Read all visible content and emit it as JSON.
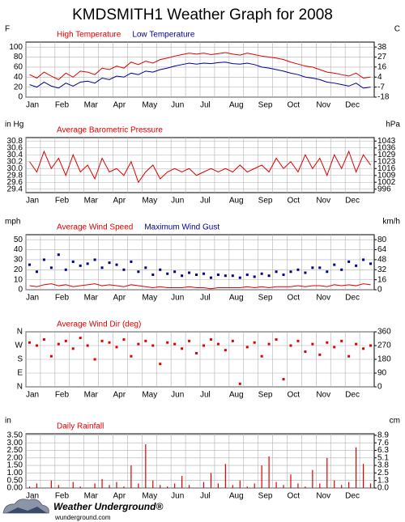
{
  "title": "KMDSMITH1 Weather Graph for 2008",
  "logo": {
    "name": "Weather Underground®",
    "url": "wunderground.com"
  },
  "chart_data": [
    {
      "type": "line",
      "ylabel": "F",
      "y2label": "C",
      "categories": [
        "Jan",
        null,
        null,
        null,
        "Feb",
        null,
        null,
        null,
        "Mar",
        null,
        null,
        null,
        "Apr",
        null,
        null,
        null,
        "May",
        null,
        null,
        null,
        "Jun",
        null,
        null,
        null,
        "Jul",
        null,
        null,
        null,
        "Aug",
        null,
        null,
        null,
        "Sep",
        null,
        null,
        null,
        "Oct",
        null,
        null,
        null,
        "Nov",
        null,
        null,
        null,
        "Dec",
        null,
        null,
        null
      ],
      "ylim": [
        0,
        110
      ],
      "yticks": [
        0,
        20,
        40,
        60,
        80,
        100
      ],
      "y2lim": [
        -17.8,
        43.3
      ],
      "y2ticks": [
        {
          "value": -17.8,
          "label": "-18"
        },
        {
          "value": -6.7,
          "label": "-7"
        },
        {
          "value": 4.4,
          "label": "4"
        },
        {
          "value": 15.6,
          "label": "16"
        },
        {
          "value": 26.7,
          "label": "27"
        },
        {
          "value": 37.8,
          "label": "38"
        }
      ],
      "grid": true,
      "series": [
        {
          "name": "High Temperature",
          "color": "#e00000",
          "mark": "line",
          "values": [
            45,
            38,
            50,
            42,
            35,
            48,
            40,
            52,
            50,
            45,
            58,
            55,
            62,
            58,
            70,
            65,
            72,
            68,
            75,
            78,
            82,
            85,
            88,
            86,
            88,
            85,
            87,
            89,
            86,
            84,
            88,
            85,
            82,
            80,
            78,
            75,
            70,
            66,
            62,
            60,
            55,
            50,
            48,
            45,
            42,
            48,
            38,
            40
          ]
        },
        {
          "name": "Low Temperature",
          "color": "#000090",
          "mark": "line",
          "values": [
            25,
            20,
            30,
            22,
            18,
            28,
            22,
            30,
            32,
            28,
            38,
            35,
            42,
            40,
            48,
            45,
            52,
            50,
            55,
            58,
            62,
            65,
            68,
            66,
            68,
            67,
            69,
            70,
            67,
            66,
            68,
            65,
            60,
            58,
            55,
            52,
            48,
            45,
            40,
            38,
            35,
            30,
            28,
            25,
            22,
            28,
            18,
            20
          ]
        }
      ]
    },
    {
      "type": "line",
      "ylabel": "in Hg",
      "y2label": "hPa",
      "categories": [
        "Jan",
        null,
        null,
        null,
        "Feb",
        null,
        null,
        null,
        "Mar",
        null,
        null,
        null,
        "Apr",
        null,
        null,
        null,
        "May",
        null,
        null,
        null,
        "Jun",
        null,
        null,
        null,
        "Jul",
        null,
        null,
        null,
        "Aug",
        null,
        null,
        null,
        "Sep",
        null,
        null,
        null,
        "Oct",
        null,
        null,
        null,
        "Nov",
        null,
        null,
        null,
        "Dec",
        null,
        null,
        null
      ],
      "ylim": [
        29.3,
        30.9
      ],
      "yticks": [
        {
          "value": 29.4,
          "label": "29.4"
        },
        {
          "value": 29.6,
          "label": "29.6"
        },
        {
          "value": 29.8,
          "label": "29.8"
        },
        {
          "value": 30.0,
          "label": "30.0"
        },
        {
          "value": 30.2,
          "label": "30.2"
        },
        {
          "value": 30.4,
          "label": "30.4"
        },
        {
          "value": 30.6,
          "label": "30.6"
        },
        {
          "value": 30.8,
          "label": "30.8"
        }
      ],
      "y2lim": [
        992.2,
        1046.4
      ],
      "y2ticks": [
        {
          "value": 995.6,
          "label": "996"
        },
        {
          "value": 1002.4,
          "label": "1002"
        },
        {
          "value": 1009.1,
          "label": "1009"
        },
        {
          "value": 1015.9,
          "label": "1016"
        },
        {
          "value": 1022.7,
          "label": "1023"
        },
        {
          "value": 1029.5,
          "label": "1029"
        },
        {
          "value": 1036.2,
          "label": "1036"
        },
        {
          "value": 1043.0,
          "label": "1043"
        }
      ],
      "grid": true,
      "series": [
        {
          "name": "Average Barometric Pressure",
          "color": "#e00000",
          "mark": "line",
          "values": [
            30.2,
            29.9,
            30.5,
            30.0,
            30.3,
            29.8,
            30.4,
            29.9,
            30.1,
            29.7,
            30.3,
            29.9,
            30.0,
            29.8,
            30.2,
            29.6,
            29.9,
            30.1,
            29.7,
            29.9,
            30.0,
            29.9,
            30.0,
            29.8,
            29.9,
            30.0,
            29.9,
            30.0,
            29.9,
            30.1,
            29.9,
            30.0,
            30.1,
            29.9,
            30.3,
            30.0,
            30.2,
            29.9,
            30.4,
            30.0,
            30.3,
            29.8,
            30.4,
            30.0,
            30.5,
            29.9,
            30.4,
            30.1
          ]
        }
      ]
    },
    {
      "type": "line",
      "ylabel": "mph",
      "y2label": "km/h",
      "categories": [
        "Jan",
        null,
        null,
        null,
        "Feb",
        null,
        null,
        null,
        "Mar",
        null,
        null,
        null,
        "Apr",
        null,
        null,
        null,
        "May",
        null,
        null,
        null,
        "Jun",
        null,
        null,
        null,
        "Jul",
        null,
        null,
        null,
        "Aug",
        null,
        null,
        null,
        "Sep",
        null,
        null,
        null,
        "Oct",
        null,
        null,
        null,
        "Nov",
        null,
        null,
        null,
        "Dec",
        null,
        null,
        null
      ],
      "ylim": [
        0,
        55
      ],
      "yticks": [
        0,
        10,
        20,
        30,
        40,
        50
      ],
      "y2lim": [
        0,
        88.5
      ],
      "y2ticks": [
        0,
        {
          "value": 16.1,
          "label": "16"
        },
        {
          "value": 32.2,
          "label": "32"
        },
        {
          "value": 48.3,
          "label": "48"
        },
        {
          "value": 64.4,
          "label": "64"
        },
        {
          "value": 80.5,
          "label": "80"
        }
      ],
      "grid": true,
      "series": [
        {
          "name": "Average Wind Speed",
          "color": "#e00000",
          "mark": "line",
          "values": [
            4,
            3,
            5,
            6,
            4,
            5,
            3,
            4,
            5,
            6,
            4,
            5,
            4,
            3,
            5,
            4,
            3,
            2,
            3,
            2,
            2,
            2,
            3,
            2,
            2,
            1,
            2,
            2,
            2,
            2,
            3,
            2,
            3,
            2,
            3,
            3,
            3,
            4,
            3,
            4,
            4,
            3,
            5,
            4,
            5,
            4,
            6,
            5
          ]
        },
        {
          "name": "Maximum Wind Gust",
          "color": "#000090",
          "mark": "point",
          "values": [
            25,
            18,
            30,
            22,
            35,
            20,
            28,
            24,
            26,
            30,
            22,
            27,
            25,
            20,
            28,
            18,
            22,
            15,
            20,
            16,
            18,
            14,
            17,
            15,
            16,
            12,
            15,
            14,
            14,
            12,
            15,
            13,
            16,
            14,
            18,
            15,
            18,
            20,
            17,
            22,
            22,
            18,
            25,
            20,
            28,
            24,
            30,
            26
          ]
        }
      ]
    },
    {
      "type": "scatter",
      "categories": [
        "Jan",
        null,
        null,
        null,
        "Feb",
        null,
        null,
        null,
        "Mar",
        null,
        null,
        null,
        "Apr",
        null,
        null,
        null,
        "May",
        null,
        null,
        null,
        "Jun",
        null,
        null,
        null,
        "Jul",
        null,
        null,
        null,
        "Aug",
        null,
        null,
        null,
        "Sep",
        null,
        null,
        null,
        "Oct",
        null,
        null,
        null,
        "Nov",
        null,
        null,
        null,
        "Dec",
        null,
        null,
        null
      ],
      "ylim": [
        0,
        360
      ],
      "yticks": [
        {
          "value": 0,
          "label": "N"
        },
        {
          "value": 90,
          "label": "E"
        },
        {
          "value": 180,
          "label": "S"
        },
        {
          "value": 270,
          "label": "W"
        },
        {
          "value": 360,
          "label": "N"
        }
      ],
      "y2lim": [
        0,
        360
      ],
      "y2ticks": [
        0,
        90,
        180,
        270,
        360
      ],
      "grid": true,
      "series": [
        {
          "name": "Average Wind Dir (deg)",
          "color": "#e00000",
          "mark": "point",
          "values": [
            290,
            270,
            310,
            200,
            280,
            300,
            250,
            320,
            270,
            180,
            300,
            290,
            260,
            310,
            200,
            280,
            300,
            270,
            150,
            290,
            280,
            250,
            300,
            220,
            270,
            310,
            280,
            240,
            300,
            20,
            260,
            290,
            200,
            280,
            310,
            50,
            270,
            300,
            230,
            280,
            210,
            290,
            260,
            300,
            200,
            280,
            250,
            270
          ]
        }
      ]
    },
    {
      "type": "bar",
      "ylabel": "in",
      "y2label": "cm",
      "categories": [
        "Jan",
        null,
        null,
        null,
        "Feb",
        null,
        null,
        null,
        "Mar",
        null,
        null,
        null,
        "Apr",
        null,
        null,
        null,
        "May",
        null,
        null,
        null,
        "Jun",
        null,
        null,
        null,
        "Jul",
        null,
        null,
        null,
        "Aug",
        null,
        null,
        null,
        "Sep",
        null,
        null,
        null,
        "Oct",
        null,
        null,
        null,
        "Nov",
        null,
        null,
        null,
        "Dec",
        null,
        null,
        null
      ],
      "ylim": [
        0,
        3.6
      ],
      "yticks": [
        {
          "value": 0,
          "label": "0.00"
        },
        {
          "value": 0.5,
          "label": "0.50"
        },
        {
          "value": 1,
          "label": "1.00"
        },
        {
          "value": 1.5,
          "label": "1.50"
        },
        {
          "value": 2,
          "label": "2.00"
        },
        {
          "value": 2.5,
          "label": "2.50"
        },
        {
          "value": 3,
          "label": "3.00"
        },
        {
          "value": 3.5,
          "label": "3.50"
        }
      ],
      "y2lim": [
        0,
        9.144
      ],
      "y2ticks": [
        {
          "value": 0,
          "label": "0.0"
        },
        {
          "value": 1.27,
          "label": "1.3"
        },
        {
          "value": 2.54,
          "label": "2.5"
        },
        {
          "value": 3.81,
          "label": "3.8"
        },
        {
          "value": 5.08,
          "label": "5.1"
        },
        {
          "value": 6.35,
          "label": "6.3"
        },
        {
          "value": 7.62,
          "label": "7.6"
        },
        {
          "value": 8.89,
          "label": "8.9"
        }
      ],
      "grid": true,
      "series": [
        {
          "name": "Daily Rainfall",
          "color": "#e00000",
          "mark": "bar",
          "values": [
            0.1,
            0.3,
            0,
            0.5,
            0.2,
            0,
            0.4,
            0.1,
            0,
            0.3,
            0.6,
            0.2,
            0.4,
            0.1,
            1.5,
            0.3,
            2.9,
            0.5,
            0.2,
            0.1,
            0.3,
            0.8,
            0.2,
            0,
            0.4,
            1.0,
            0.3,
            1.6,
            0.2,
            0.5,
            0.1,
            0.3,
            1.5,
            2.1,
            0.4,
            0.2,
            0.9,
            0.3,
            0.1,
            1.2,
            0.3,
            2.0,
            0.5,
            0.2,
            0.4,
            2.7,
            1.6,
            0.3
          ]
        }
      ]
    }
  ]
}
